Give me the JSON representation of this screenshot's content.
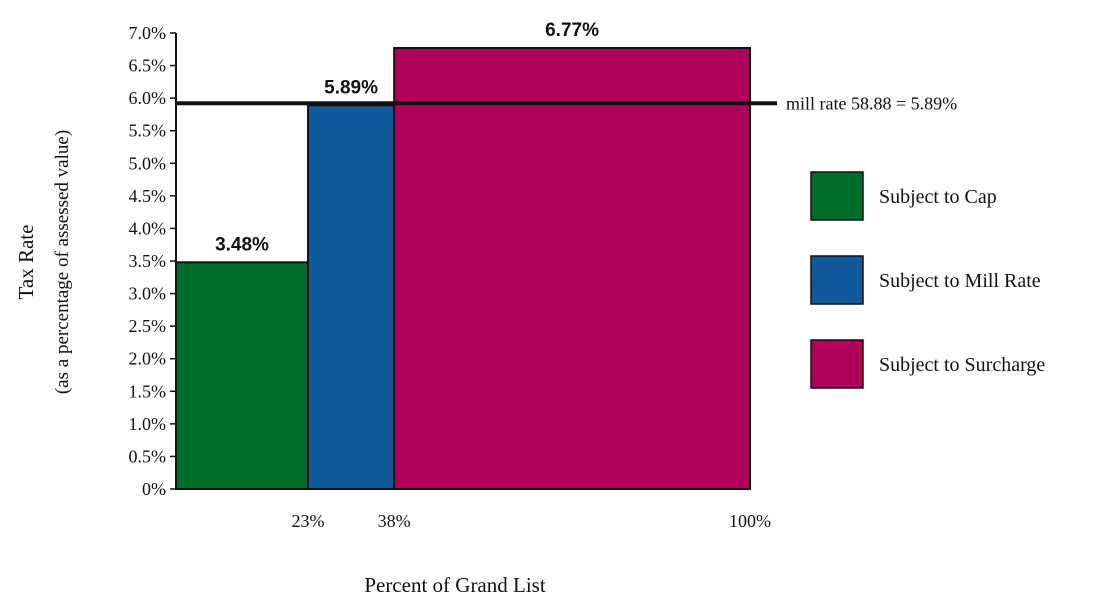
{
  "chart_data": {
    "type": "bar",
    "title": "",
    "xlabel": "Percent of Grand List",
    "ylabel": "Tax Rate",
    "ylabel_sub": "(as a percentage of assessed value)",
    "ylim": [
      0,
      7.0
    ],
    "y_tick_values": [
      0,
      0.5,
      1.0,
      1.5,
      2.0,
      2.5,
      3.0,
      3.5,
      4.0,
      4.5,
      5.0,
      5.5,
      6.0,
      6.5,
      7.0
    ],
    "y_tick_labels": [
      "0%",
      "0.5%",
      "1.0%",
      "1.5%",
      "2.0%",
      "2.5%",
      "3.0%",
      "3.5%",
      "4.0%",
      "4.5%",
      "5.0%",
      "5.5%",
      "6.0%",
      "6.5%",
      "7.0%"
    ],
    "xlim": [
      0,
      100
    ],
    "x_tick_values": [
      23,
      38,
      100
    ],
    "x_tick_labels": [
      "23%",
      "38%",
      "100%"
    ],
    "segments": [
      {
        "name": "Subject to Cap",
        "x_start": 0,
        "x_end": 23,
        "value": 3.48,
        "label": "3.48%",
        "color": "#006d2c"
      },
      {
        "name": "Subject to Mill Rate",
        "x_start": 23,
        "x_end": 38,
        "value": 5.89,
        "label": "5.89%",
        "color": "#0e5a9a"
      },
      {
        "name": "Subject to Surcharge",
        "x_start": 38,
        "x_end": 100,
        "value": 6.77,
        "label": "6.77%",
        "color": "#b0005a"
      }
    ],
    "reference_line": {
      "value": 5.89,
      "label": "mill rate 58.88 = 5.89%"
    },
    "legend": {
      "placement": "right",
      "entries": [
        {
          "label": "Subject to Cap",
          "color": "#006d2c"
        },
        {
          "label": "Subject to Mill Rate",
          "color": "#0e5a9a"
        },
        {
          "label": "Subject to Surcharge",
          "color": "#b0005a"
        }
      ]
    },
    "grid": false
  }
}
